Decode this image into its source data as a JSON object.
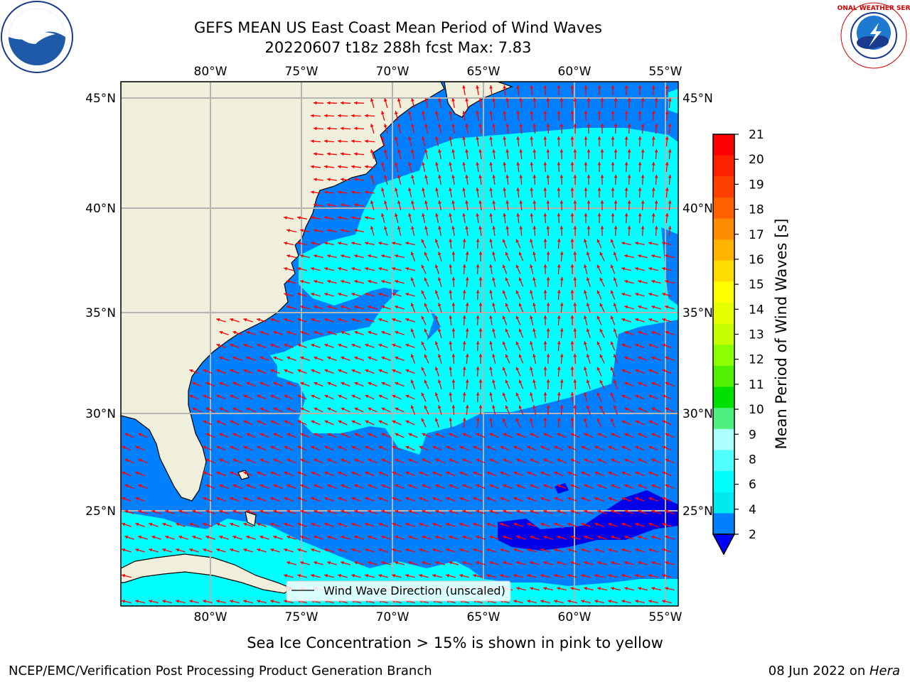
{
  "title": {
    "line1": "GEFS MEAN US East Coast Mean Period of Wind Waves",
    "line2": "20220607 t18z 288h fcst   Max: 7.83"
  },
  "axes": {
    "lon_labels": [
      "80°W",
      "75°W",
      "70°W",
      "65°W",
      "60°W",
      "55°W"
    ],
    "lat_labels": [
      "45°N",
      "40°N",
      "35°N",
      "30°N",
      "25°N"
    ]
  },
  "legend": {
    "label": "Wind Wave Direction (unscaled)"
  },
  "colorbar": {
    "label": "Mean Period of Wind Waves [s]",
    "ticks": [
      "21",
      "20",
      "19",
      "18",
      "17",
      "16",
      "15",
      "14",
      "13",
      "12",
      "11",
      "10",
      "9",
      "8",
      "6",
      "4",
      "2"
    ],
    "colors": [
      "#ff0000",
      "#ff2000",
      "#ff4000",
      "#ff6000",
      "#ff8c00",
      "#ffb400",
      "#ffdc00",
      "#ffff00",
      "#e6ff00",
      "#c8ff00",
      "#8cff00",
      "#50f000",
      "#00e000",
      "#50f080",
      "#aaffff",
      "#50ffff",
      "#00ffff",
      "#00e8f0",
      "#0080ff"
    ]
  },
  "notes": {
    "sea_ice": "Sea Ice Concentration > 15% is shown in pink to yellow"
  },
  "footer": {
    "left": "NCEP/EMC/Verification Post Processing Product Generation Branch",
    "right_date": "08 Jun 2022 on ",
    "right_host": "Hera"
  },
  "logos": {
    "noaa": "NOAA",
    "nws": "NATIONAL WEATHER SERVICE"
  }
}
